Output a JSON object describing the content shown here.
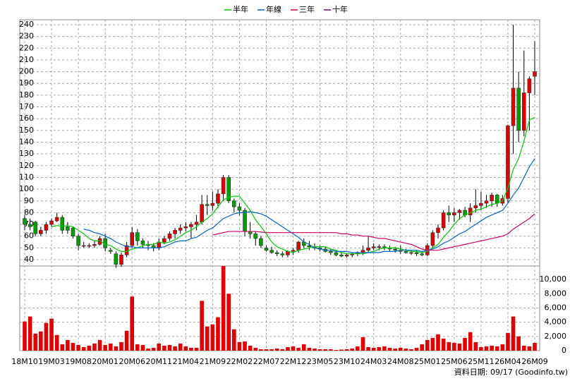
{
  "chart_data": [
    {
      "type": "candlestick",
      "up_color": "#e00000",
      "down_color": "#00a000",
      "open": [
        75,
        70,
        72,
        62,
        65,
        70,
        73,
        76,
        68,
        67,
        60,
        52,
        52,
        52,
        53,
        58,
        48,
        45,
        36,
        44,
        52,
        63,
        56,
        53,
        52,
        50,
        55,
        58,
        62,
        65,
        67,
        68,
        70,
        72,
        87,
        86,
        88,
        96,
        110,
        90,
        85,
        82,
        64,
        62,
        58,
        50,
        48,
        46,
        45,
        44,
        47,
        48,
        55,
        52,
        51,
        50,
        49,
        47,
        46,
        44,
        43,
        44,
        45,
        46,
        48,
        50,
        51,
        51,
        50,
        49,
        48,
        47,
        46,
        46,
        45,
        44,
        52,
        63,
        67,
        80,
        78,
        80,
        82,
        78,
        84,
        86,
        88,
        90,
        95,
        88,
        92,
        154,
        186,
        150,
        182,
        196
      ],
      "high": [
        78,
        75,
        73,
        68,
        72,
        75,
        80,
        78,
        72,
        68,
        62,
        55,
        54,
        56,
        60,
        62,
        50,
        47,
        46,
        55,
        68,
        66,
        58,
        56,
        54,
        58,
        60,
        64,
        67,
        70,
        72,
        72,
        78,
        95,
        95,
        98,
        100,
        112,
        112,
        92,
        88,
        84,
        72,
        64,
        60,
        52,
        51,
        48,
        47,
        48,
        50,
        56,
        58,
        56,
        54,
        52,
        51,
        49,
        48,
        46,
        45,
        46,
        47,
        52,
        60,
        54,
        53,
        53,
        52,
        51,
        52,
        49,
        48,
        48,
        47,
        54,
        65,
        70,
        82,
        86,
        84,
        83,
        85,
        88,
        100,
        98,
        95,
        97,
        96,
        95,
        155,
        240,
        200,
        218,
        196,
        226
      ],
      "low": [
        65,
        65,
        60,
        60,
        62,
        68,
        72,
        62,
        62,
        58,
        48,
        50,
        50,
        50,
        52,
        47,
        45,
        33,
        34,
        42,
        50,
        52,
        50,
        48,
        47,
        48,
        53,
        56,
        58,
        62,
        64,
        58,
        65,
        70,
        78,
        82,
        84,
        90,
        88,
        80,
        78,
        60,
        58,
        52,
        50,
        47,
        45,
        43,
        42,
        42,
        44,
        46,
        50,
        48,
        48,
        47,
        46,
        44,
        43,
        42,
        42,
        42,
        43,
        44,
        46,
        48,
        48,
        48,
        47,
        46,
        45,
        45,
        44,
        43,
        43,
        43,
        50,
        58,
        65,
        72,
        72,
        74,
        76,
        72,
        80,
        82,
        84,
        85,
        85,
        86,
        88,
        130,
        140,
        145,
        150,
        180
      ],
      "close": [
        70,
        68,
        62,
        65,
        70,
        73,
        76,
        65,
        65,
        60,
        52,
        52,
        52,
        53,
        58,
        50,
        47,
        36,
        44,
        52,
        63,
        56,
        53,
        52,
        50,
        55,
        58,
        62,
        65,
        67,
        68,
        70,
        72,
        87,
        86,
        88,
        96,
        110,
        90,
        85,
        82,
        64,
        62,
        58,
        52,
        48,
        46,
        45,
        44,
        47,
        48,
        55,
        52,
        51,
        50,
        49,
        47,
        46,
        44,
        43,
        44,
        45,
        46,
        48,
        50,
        51,
        51,
        50,
        49,
        48,
        47,
        46,
        46,
        45,
        44,
        52,
        63,
        67,
        80,
        78,
        80,
        82,
        78,
        84,
        86,
        88,
        90,
        95,
        88,
        92,
        154,
        186,
        150,
        182,
        194,
        200
      ],
      "series": [
        {
          "name": "半年",
          "color": "#00cc00",
          "values": [
            null,
            null,
            null,
            null,
            null,
            68,
            69,
            68.5,
            69,
            68,
            65,
            62,
            58,
            56,
            56,
            53,
            52,
            49,
            47,
            47,
            49,
            50,
            52,
            53,
            53,
            55,
            54,
            55,
            57,
            60,
            63,
            65,
            68,
            72,
            75,
            79,
            85,
            91,
            93,
            94,
            94,
            88,
            82,
            74,
            68,
            62,
            55,
            51,
            49,
            47,
            46,
            48,
            49,
            50,
            51,
            51,
            51,
            49,
            48,
            46,
            45,
            45,
            45,
            45,
            46,
            47,
            49,
            50,
            50,
            50,
            49,
            48,
            47,
            47,
            46,
            47,
            50,
            53,
            59,
            64,
            70,
            75,
            78,
            80,
            82,
            83,
            85,
            87,
            88,
            90,
            101,
            117,
            126,
            141,
            159,
            161
          ]
        },
        {
          "name": "年線",
          "color": "#0066cc",
          "values": [
            null,
            null,
            null,
            null,
            null,
            null,
            null,
            null,
            null,
            null,
            null,
            66,
            65,
            63,
            62,
            60,
            58,
            55,
            53,
            51,
            51,
            50,
            50,
            50,
            50,
            50,
            51,
            53,
            55,
            56,
            56,
            58,
            59,
            62,
            65,
            67,
            71,
            75,
            77,
            79,
            80,
            80,
            81,
            80,
            79,
            77,
            74,
            71,
            68,
            65,
            62,
            59,
            55,
            53,
            50,
            49,
            48,
            48,
            47,
            47,
            47,
            46,
            46,
            46,
            46,
            46,
            46,
            47,
            47,
            47,
            48,
            48,
            48,
            48,
            47,
            48,
            49,
            51,
            54,
            56,
            59,
            62,
            64,
            67,
            70,
            73,
            76,
            78,
            80,
            82,
            88,
            95,
            101,
            110,
            119,
            126
          ]
        },
        {
          "name": "三年",
          "color": "#d0006f",
          "values": [
            null,
            null,
            null,
            null,
            null,
            null,
            null,
            null,
            null,
            null,
            null,
            null,
            null,
            null,
            null,
            null,
            null,
            null,
            null,
            null,
            null,
            null,
            null,
            null,
            null,
            null,
            null,
            null,
            null,
            null,
            null,
            null,
            null,
            null,
            null,
            61,
            62,
            63,
            64,
            64,
            64,
            64,
            64,
            64,
            63.5,
            63,
            63,
            63,
            63,
            63,
            63,
            63,
            63,
            63,
            63,
            63,
            63,
            63,
            63,
            62,
            62,
            61,
            61,
            60,
            60,
            59,
            58,
            58,
            57,
            56,
            55,
            54,
            53,
            51,
            49,
            48,
            48,
            48,
            49,
            50,
            51,
            52,
            53,
            54,
            55,
            56,
            57,
            58,
            59,
            60,
            62,
            66,
            69,
            72,
            75,
            79
          ]
        },
        {
          "name": "十年",
          "color": "#800080",
          "values": [
            null,
            null,
            null,
            null,
            null,
            null,
            null,
            null,
            null,
            null,
            null,
            null,
            null,
            null,
            null,
            null,
            null,
            null,
            null,
            null,
            null,
            null,
            null,
            null,
            null,
            null,
            null,
            null,
            null,
            null,
            null,
            null,
            null,
            null,
            null,
            null,
            null,
            null,
            null,
            null,
            null,
            null,
            null,
            null,
            null,
            null,
            null,
            null,
            null,
            null,
            null,
            null,
            null,
            null,
            null,
            null,
            null,
            null,
            null,
            null,
            null,
            null,
            null,
            null,
            null,
            null,
            null,
            null,
            null,
            null,
            null,
            null,
            null,
            null,
            null,
            null,
            null,
            null,
            null,
            null,
            null,
            null,
            null,
            null,
            null,
            null,
            null,
            null,
            null,
            null,
            null,
            null,
            null,
            null,
            null,
            null
          ]
        }
      ],
      "ylim": [
        34.6,
        244.2
      ],
      "yticks": [
        40,
        50,
        60,
        70,
        80,
        90,
        100,
        110,
        120,
        130,
        140,
        150,
        160,
        170,
        180,
        190,
        200,
        210,
        220,
        230,
        240
      ],
      "grid": true
    },
    {
      "type": "bar",
      "color": "#e00000",
      "categories": [
        "18M10",
        null,
        null,
        null,
        null,
        "19M03",
        null,
        null,
        null,
        null,
        "19M08",
        null,
        null,
        null,
        null,
        "20M01",
        null,
        null,
        null,
        null,
        "20M06",
        null,
        null,
        null,
        null,
        "20M11",
        null,
        null,
        null,
        null,
        "21M04",
        null,
        null,
        null,
        null,
        "21M09",
        null,
        null,
        null,
        null,
        "22M02",
        null,
        null,
        null,
        null,
        "22M07",
        null,
        null,
        null,
        null,
        "22M12",
        null,
        null,
        null,
        null,
        "23M05",
        null,
        null,
        null,
        null,
        "23M10",
        null,
        null,
        null,
        null,
        "24M03",
        null,
        null,
        null,
        null,
        "24M08",
        null,
        null,
        null,
        null,
        "25M01",
        null,
        null,
        null,
        null,
        "25M06",
        null,
        null,
        null,
        null,
        "25M11",
        null,
        null,
        null,
        null,
        "26M04",
        null,
        null,
        null,
        null,
        "26M09"
      ],
      "values": [
        4100,
        4800,
        2400,
        2700,
        3900,
        4500,
        2200,
        900,
        1500,
        1100,
        800,
        500,
        700,
        1000,
        1500,
        800,
        1000,
        600,
        1200,
        2800,
        7600,
        900,
        800,
        300,
        400,
        1000,
        700,
        800,
        600,
        1000,
        600,
        400,
        400,
        7000,
        3400,
        3700,
        4700,
        11900,
        8000,
        3000,
        1200,
        1300,
        700,
        400,
        200,
        200,
        200,
        300,
        200,
        500,
        600,
        400,
        900,
        400,
        300,
        200,
        200,
        200,
        100,
        150,
        200,
        300,
        600,
        1900,
        500,
        400,
        500,
        600,
        400,
        300,
        400,
        300,
        200,
        400,
        900,
        1500,
        1800,
        2300,
        1700,
        1200,
        1100,
        1000,
        1800,
        2600,
        1200,
        500,
        600,
        700,
        600,
        900,
        2500,
        4800,
        2000,
        700,
        600,
        1100
      ],
      "ylim": [
        0,
        11900
      ],
      "yticks": [
        0,
        {
          "value": 2000,
          "label": "2,000"
        },
        {
          "value": 4000,
          "label": "4,000"
        },
        {
          "value": 6000,
          "label": "6,000"
        },
        {
          "value": 8000,
          "label": "8,000"
        },
        {
          "value": 10000,
          "label": "10,000"
        }
      ],
      "grid": true
    }
  ],
  "footer": "資料日期: 09/17 (Goodinfo.tw)"
}
